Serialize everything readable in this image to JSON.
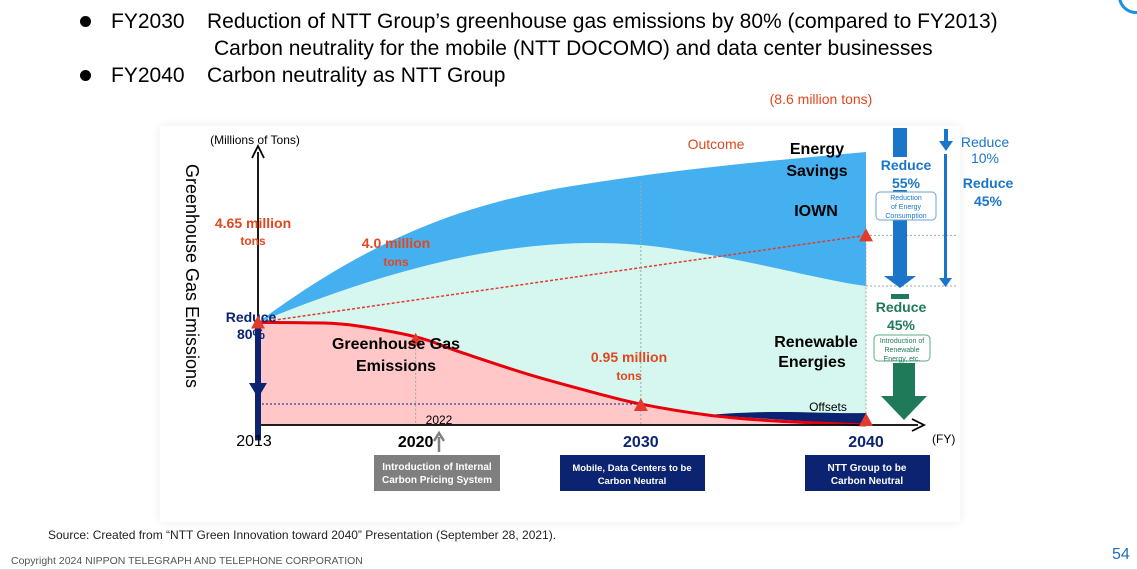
{
  "header": {
    "bullets": [
      {
        "year": "FY2030",
        "lines": [
          "Reduction of NTT Group’s greenhouse gas emissions by 80% (compared to FY2013)",
          "Carbon neutrality for the mobile (NTT DOCOMO) and data center businesses"
        ]
      },
      {
        "year": "FY2040",
        "lines": [
          "Carbon neutrality as NTT Group"
        ]
      }
    ]
  },
  "chart_data": {
    "type": "area",
    "ylabel": "Greenhouse Gas Emissions",
    "yunit": "(Millions of Tons)",
    "xunit": "(FY)",
    "x_ticks": [
      "2013",
      "2020",
      "2030",
      "2040"
    ],
    "x_2022_label": "2022",
    "emissions_series": {
      "name": "Greenhouse Gas Emissions",
      "x": [
        2013,
        2015,
        2017,
        2020,
        2022,
        2025,
        2028,
        2030,
        2033,
        2036,
        2040
      ],
      "y": [
        4.65,
        4.64,
        4.55,
        4.0,
        3.3,
        2.3,
        1.45,
        0.95,
        0.45,
        0.18,
        0.0
      ]
    },
    "outcome_series": {
      "name": "Outcome",
      "x": [
        2013,
        2040
      ],
      "y": [
        4.65,
        8.6
      ]
    },
    "point_labels": {
      "p2013": [
        "4.65 million",
        "tons"
      ],
      "p2020": [
        "4.0 million",
        "tons"
      ],
      "p2030": [
        "0.95 million",
        "tons"
      ],
      "p2040": "(8.6 million tons)"
    },
    "region_labels": {
      "energy_savings": [
        "Energy",
        "Savings"
      ],
      "iown": "IOWN",
      "renewable": [
        "Renewable",
        "Energies"
      ],
      "offsets": "Offsets",
      "emissions": [
        "Greenhouse Gas",
        "Emissions"
      ]
    },
    "reduce_80": [
      "Reduce",
      "80%"
    ],
    "reductions": {
      "r55": [
        "Reduce",
        "55%"
      ],
      "r55_sub": [
        "Reduction",
        "of Energy",
        "Consumption"
      ],
      "r10": [
        "Reduce",
        "10%"
      ],
      "r45_right": [
        "Reduce",
        "45%"
      ],
      "r45_green": [
        "Reduce",
        "45%"
      ],
      "r45_green_sub": [
        "Introduction of",
        "Renewable",
        "Energy, etc."
      ]
    },
    "milestones": {
      "m2022": [
        "Introduction of Internal",
        "Carbon Pricing System"
      ],
      "m2030": [
        "Mobile, Data Centers to be",
        "Carbon Neutral"
      ],
      "m2040": [
        "NTT Group to be",
        "Carbon Neutral"
      ]
    },
    "colors": {
      "emissions_fill": "#ffc7c7",
      "emissions_line": "#e8000b",
      "renewable_fill": "#d6f7ef",
      "energy_fill": "#45b0f0",
      "outcome_fill": "#d8e9f7",
      "outcome_line": "#e23b2c",
      "navy": "#0b2370",
      "arrow_blue": "#1b76c9",
      "green": "#1f7a5a",
      "label_red": "#e0471f",
      "gray_box": "#7f7f7f"
    }
  },
  "footer": {
    "source": "Source: Created from “NTT Green Innovation toward 2040” Presentation (September 28, 2021).",
    "copyright": "Copyright 2024  NIPPON TELEGRAPH AND TELEPHONE CORPORATION",
    "page": "54"
  }
}
